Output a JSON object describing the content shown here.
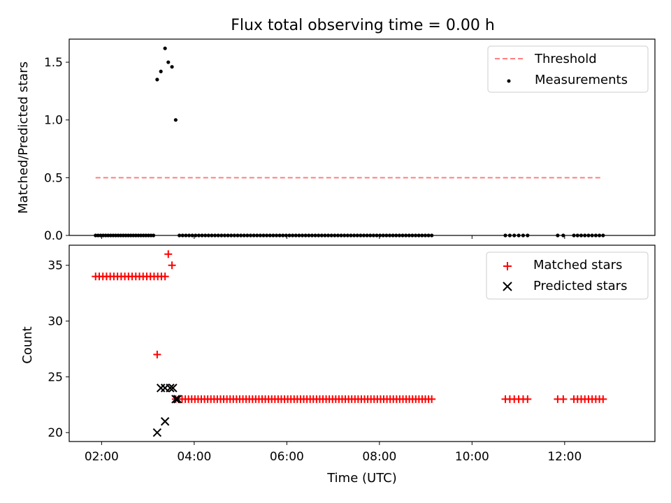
{
  "title": "Flux total observing time = 0.00 h",
  "chart_data": [
    {
      "type": "scatter",
      "ylabel": "Matched/Predicted stars",
      "xlabel": "",
      "ylim": [
        0.0,
        1.7
      ],
      "yticks": [
        0.0,
        0.5,
        1.0,
        1.5
      ],
      "ytick_labels": [
        "0.0",
        "0.5",
        "1.0",
        "1.5"
      ],
      "legend_position": "top-right",
      "threshold": {
        "name": "Threshold",
        "value": 0.5,
        "x_range": [
          1.87,
          12.83
        ],
        "color": "#ff7f7f",
        "style": "dashed"
      },
      "series": [
        {
          "name": "Measurements",
          "color": "#000000",
          "marker": "dot",
          "points": [
            [
              3.2,
              1.35
            ],
            [
              3.28,
              1.42
            ],
            [
              3.37,
              1.62
            ],
            [
              3.44,
              1.5
            ],
            [
              3.52,
              1.46
            ],
            [
              3.6,
              1.0
            ]
          ],
          "zero_level_ranges": [
            [
              1.87,
              3.12,
              24
            ],
            [
              3.68,
              9.13,
              79
            ],
            [
              10.72,
              11.2,
              6
            ],
            [
              11.85,
              11.97,
              2
            ],
            [
              12.2,
              12.83,
              9
            ]
          ]
        }
      ]
    },
    {
      "type": "scatter",
      "ylabel": "Count",
      "xlabel": "Time (UTC)",
      "ylim": [
        19.2,
        36.8
      ],
      "yticks": [
        20,
        25,
        30,
        35
      ],
      "ytick_labels": [
        "20",
        "25",
        "30",
        "35"
      ],
      "xlim": [
        1.3,
        13.95
      ],
      "xticks": [
        2,
        4,
        6,
        8,
        10,
        12
      ],
      "xtick_labels": [
        "02:00",
        "04:00",
        "06:00",
        "08:00",
        "10:00",
        "12:00"
      ],
      "legend_position": "top-right",
      "series": [
        {
          "name": "Matched stars",
          "color": "#ff0000",
          "marker": "plus",
          "points": [
            [
              3.2,
              27
            ],
            [
              3.44,
              36
            ],
            [
              3.52,
              35
            ]
          ],
          "constant_ranges": [
            [
              1.87,
              3.37,
              34,
              20
            ],
            [
              3.6,
              9.13,
              23,
              81
            ],
            [
              10.72,
              11.2,
              23,
              6
            ],
            [
              11.85,
              11.97,
              23,
              2
            ],
            [
              12.2,
              12.83,
              23,
              9
            ]
          ]
        },
        {
          "name": "Predicted stars",
          "color": "#000000",
          "marker": "x",
          "points": [
            [
              3.2,
              20
            ],
            [
              3.28,
              24
            ],
            [
              3.37,
              21
            ],
            [
              3.37,
              24
            ],
            [
              3.48,
              24
            ],
            [
              3.54,
              24
            ],
            [
              3.6,
              23
            ],
            [
              3.64,
              23
            ]
          ]
        }
      ]
    }
  ]
}
